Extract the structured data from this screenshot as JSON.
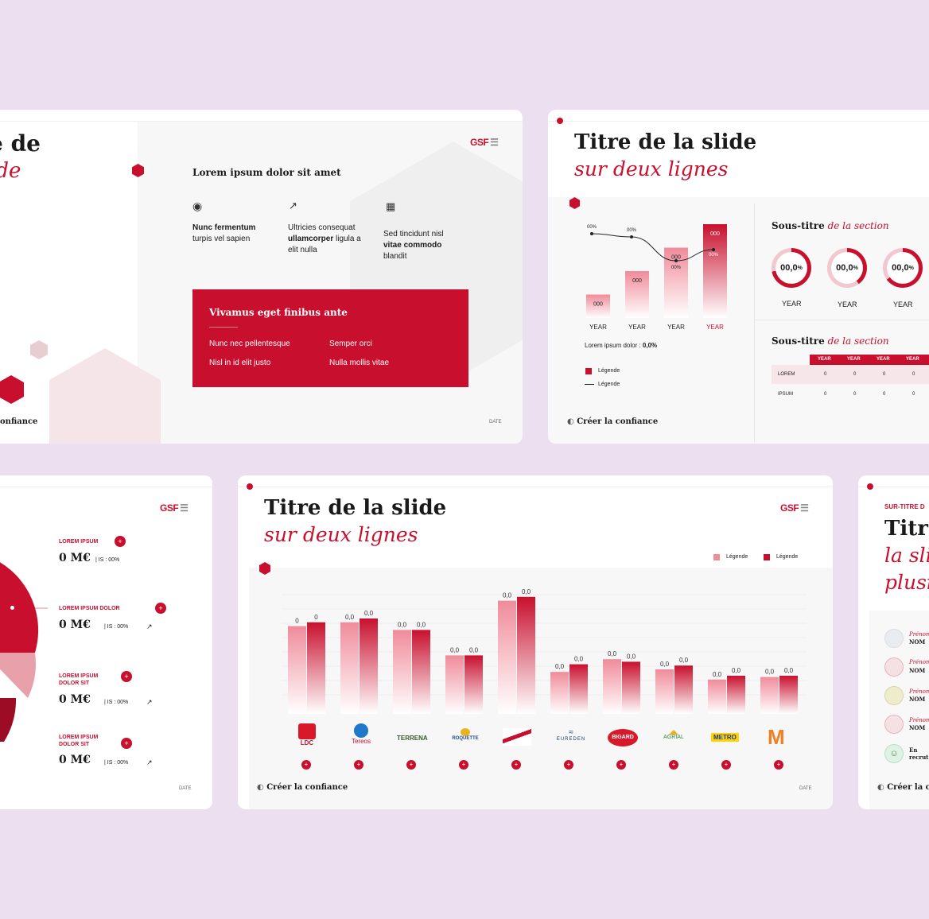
{
  "slide1": {
    "title_partial": "e de",
    "subtitle_partial": "ide",
    "logo": "GSF",
    "heading": "Lorem ipsum dolor sit amet",
    "features": [
      {
        "icon": "eye-icon",
        "bold": "Nunc fermentum",
        "text": "turpis vel sapien",
        "bold2": "",
        "text2": ""
      },
      {
        "icon": "chart-icon",
        "bold": "",
        "text": "Ultricies consequat",
        "bold2": "ullamcorper",
        "text2": "ligula a elit nulla"
      },
      {
        "icon": "calendar-icon",
        "bold": "",
        "text": "Sed tincidunt nisl",
        "bold2": "vitae commodo",
        "text2": "blandit"
      }
    ],
    "box": {
      "title": "Vivamus eget finibus ante",
      "items": [
        "Nunc nec pellentesque",
        "Semper orci",
        "Nisl in id elit justo",
        "Nulla mollis vitae"
      ]
    },
    "footer": "onfiance",
    "date": "DATE"
  },
  "slide2": {
    "title": "Titre de la slide",
    "subtitle": "sur deux lignes",
    "bar_values": [
      "000",
      "000",
      "000",
      "000"
    ],
    "line_values": [
      "00%",
      "00%",
      "00%",
      "00%"
    ],
    "years": [
      "YEAR",
      "YEAR",
      "YEAR",
      "YEAR"
    ],
    "note": "Lorem ipsum dolor : ",
    "note_value": "0,0%",
    "legend": [
      "Légende",
      "Légende"
    ],
    "section1": {
      "a": "Sous-titre",
      "b": "de la section"
    },
    "rings": [
      "00,0",
      "00,0",
      "00,0"
    ],
    "ring_unit": "%",
    "ring_years": [
      "YEAR",
      "YEAR",
      "YEAR"
    ],
    "section2": {
      "a": "Sous-titre",
      "b": "de la section"
    },
    "table": {
      "headers": [
        "YEAR",
        "YEAR",
        "YEAR",
        "YEAR"
      ],
      "rows": [
        {
          "label": "LOREM",
          "cells": [
            "0",
            "0",
            "0",
            "0"
          ]
        },
        {
          "label": "IPSUM",
          "cells": [
            "0",
            "0",
            "0",
            "0"
          ]
        }
      ]
    },
    "footer": "Créer la confiance"
  },
  "slide3": {
    "logo": "GSF",
    "items": [
      {
        "label": "LOREM IPSUM",
        "value": "0 M€",
        "is": "| IS : 00%"
      },
      {
        "label": "LOREM IPSUM DOLOR",
        "value": "0 M€",
        "is": "| IS : 00%"
      },
      {
        "label": "LOREM IPSUM DOLOR SIT",
        "value": "0 M€",
        "is": "| IS : 00%"
      },
      {
        "label": "LOREM IPSUM DOLOR SIT",
        "value": "0 M€",
        "is": "| IS : 00%"
      }
    ],
    "date": "DATE"
  },
  "slide4": {
    "title": "Titre de la slide",
    "subtitle": "sur deux lignes",
    "logo": "GSF",
    "legend": [
      "Légende",
      "Légende"
    ],
    "logos": [
      "LDC",
      "Tereos",
      "TERRENA",
      "ROQUETTE",
      "",
      "EUREDEN",
      "BIGARD",
      "AGRIAL",
      "METRO",
      "M"
    ],
    "footer": "Créer la confiance",
    "date": "DATE"
  },
  "slide5": {
    "overtitle": "SUR-TITRE D",
    "title": [
      "Titr",
      "la sli",
      "plusi"
    ],
    "people": [
      {
        "first": "Prénom",
        "last": "NOM"
      },
      {
        "first": "Prénom",
        "last": "NOM"
      },
      {
        "first": "Prénom",
        "last": "NOM"
      },
      {
        "first": "Prénom",
        "last": "NOM"
      },
      {
        "first": "En",
        "last": "recrut"
      }
    ],
    "footer": "Créer la c"
  },
  "chart_data": [
    {
      "type": "bar",
      "categories": [
        "YEAR",
        "YEAR",
        "YEAR",
        "YEAR"
      ],
      "series": [
        {
          "name": "Légende",
          "values": [
            1,
            2,
            3,
            4
          ],
          "labels": [
            "000",
            "000",
            "000",
            "000"
          ]
        }
      ],
      "line": {
        "name": "Légende",
        "labels": [
          "00%",
          "00%",
          "00%",
          "00%"
        ]
      }
    },
    {
      "type": "bar",
      "categories": [
        "LDC",
        "Tereos",
        "TERRENA",
        "ROQUETTE",
        "",
        "EUREDEN",
        "BIGARD",
        "AGRIAL",
        "METRO",
        "M"
      ],
      "series": [
        {
          "name": "Légende",
          "values": [
            0.69,
            0.72,
            0.66,
            0.46,
            0.89,
            0.33,
            0.43,
            0.35,
            0.27,
            0.29
          ]
        },
        {
          "name": "Légende",
          "values": [
            0.72,
            0.75,
            0.66,
            0.46,
            0.92,
            0.39,
            0.41,
            0.38,
            0.3,
            0.3
          ]
        }
      ],
      "data_labels": [
        [
          "0",
          "0"
        ],
        [
          "0,0",
          "0,0"
        ],
        [
          "0,0",
          "0,0"
        ],
        [
          "0,0",
          "0,0"
        ],
        [
          "0,0",
          "0,0"
        ],
        [
          "0,0",
          "0,0"
        ],
        [
          "0,0",
          "0,0"
        ],
        [
          "0,0",
          "0,0"
        ],
        [
          "0,0",
          "0,0"
        ],
        [
          "0,0",
          "0,0"
        ]
      ]
    }
  ],
  "colors": {
    "accent": "#c8102e",
    "light": "#f08b9a",
    "bg": "#ece0f0"
  }
}
